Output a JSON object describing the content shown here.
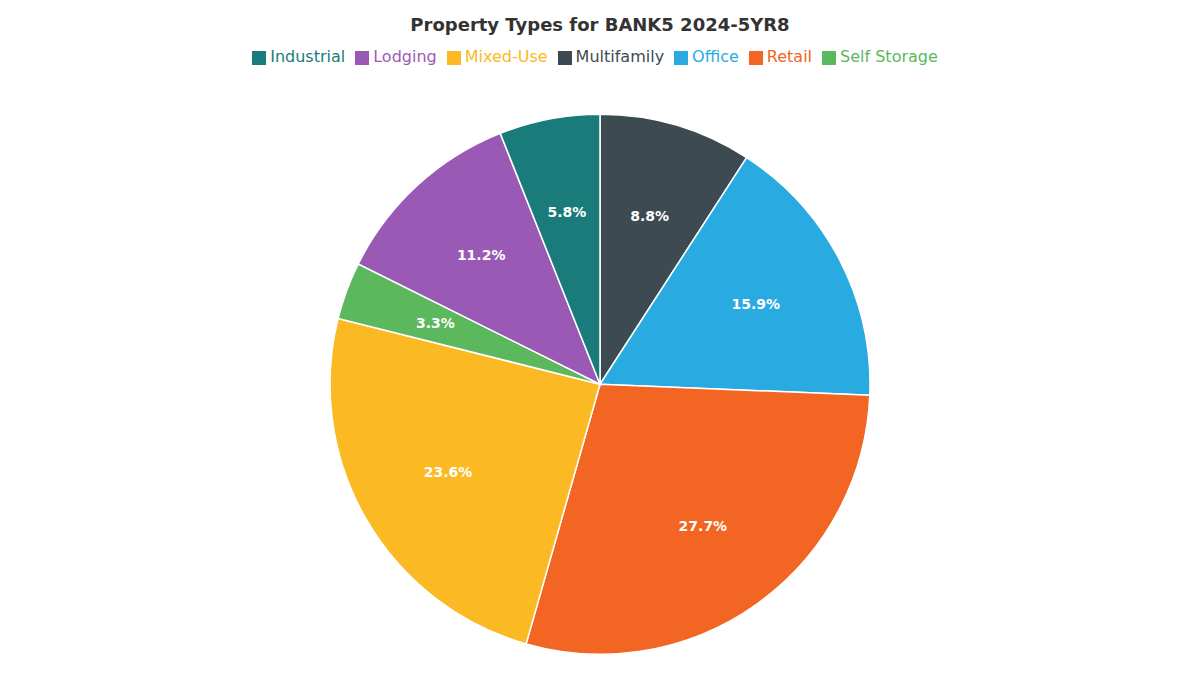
{
  "chart_data": {
    "type": "pie",
    "title": "Property Types for BANK5 2024-5YR8",
    "categories": [
      "Multifamily",
      "Office",
      "Retail",
      "Mixed-Use",
      "Self Storage",
      "Lodging",
      "Industrial"
    ],
    "values": [
      8.8,
      15.9,
      27.7,
      23.6,
      3.3,
      11.2,
      5.8
    ],
    "value_labels": [
      "8.8%",
      "15.9%",
      "27.7%",
      "23.6%",
      "3.3%",
      "11.2%",
      "5.8%"
    ],
    "colors": [
      "#3d4a52",
      "#29abe2",
      "#f26522",
      "#fbb924",
      "#5cb85c",
      "#9b59b6",
      "#1a7b7b"
    ],
    "data_labels": true,
    "legend": "top"
  }
}
